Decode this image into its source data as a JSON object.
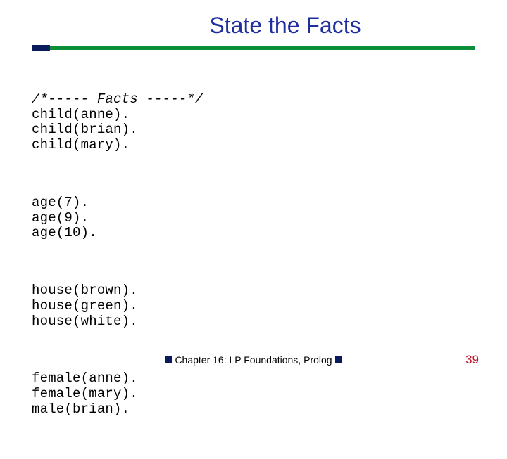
{
  "title": "State the Facts",
  "colors": {
    "title": "#1f2e9e",
    "rule_main": "#0d8f3a",
    "rule_accent": "#0a1a5a",
    "code_text": "#000000",
    "footer_text": "#000000",
    "footer_bullet": "#0a1a5a",
    "page_number": "#c2112a",
    "background": "#ffffff"
  },
  "typography": {
    "title_fontsize": 32,
    "code_fontsize": 19,
    "code_fontfamily": "Lucida Console",
    "footer_fontsize": 14,
    "page_number_fontsize": 17
  },
  "code": {
    "comment": "/*----- Facts -----*/",
    "blocks": [
      [
        "child(anne).",
        "child(brian).",
        "child(mary)."
      ],
      [
        "age(7).",
        "age(9).",
        "age(10)."
      ],
      [
        "house(brown).",
        "house(green).",
        "house(white)."
      ],
      [
        "female(anne).",
        "female(mary).",
        "male(brian)."
      ]
    ]
  },
  "footer": {
    "text": "Chapter 16: LP Foundations, Prolog"
  },
  "page_number": "39"
}
